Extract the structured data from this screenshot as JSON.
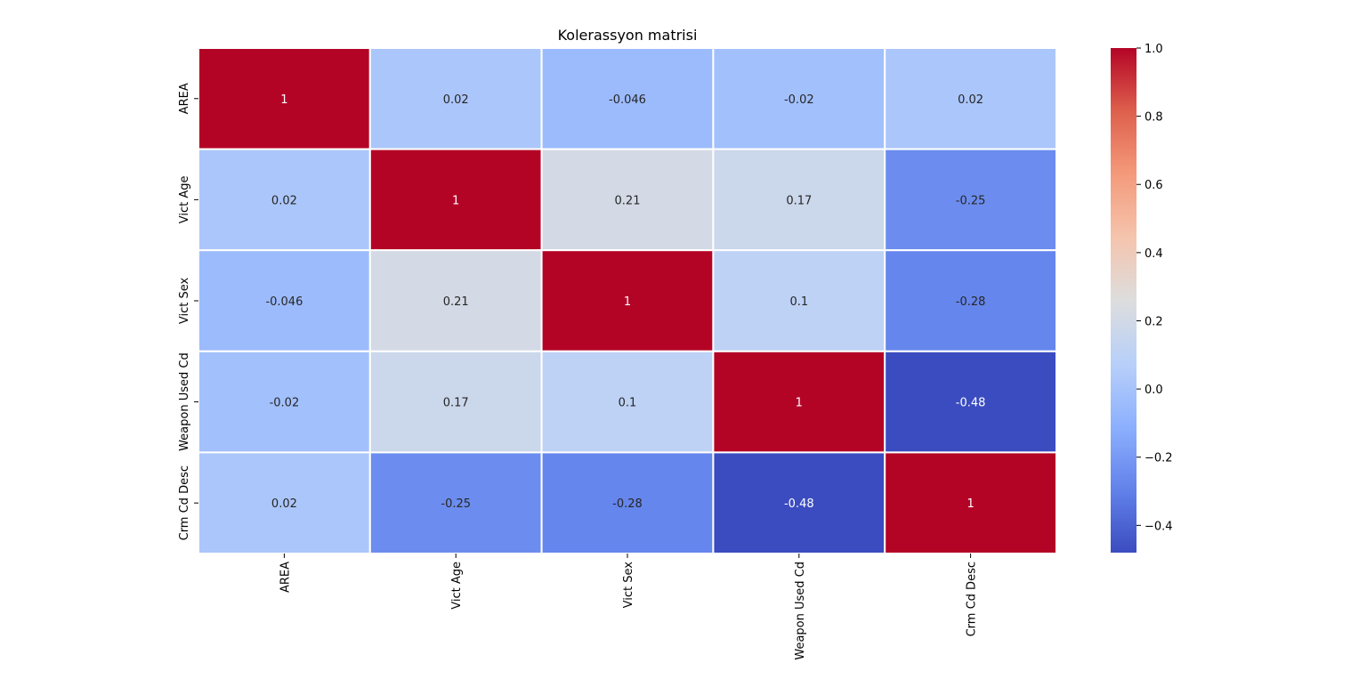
{
  "chart_data": {
    "type": "heatmap",
    "title": "Kolerassyon matrisi",
    "row_labels": [
      "AREA",
      "Vict Age",
      "Vict Sex",
      "Weapon Used Cd",
      "Crm Cd Desc"
    ],
    "col_labels": [
      "AREA",
      "Vict Age",
      "Vict Sex",
      "Weapon Used Cd",
      "Crm Cd Desc"
    ],
    "values": [
      [
        1,
        0.02,
        -0.046,
        -0.02,
        0.02
      ],
      [
        0.02,
        1,
        0.21,
        0.17,
        -0.25
      ],
      [
        -0.046,
        0.21,
        1,
        0.1,
        -0.28
      ],
      [
        -0.02,
        0.17,
        0.1,
        1,
        -0.48
      ],
      [
        0.02,
        -0.25,
        -0.28,
        -0.48,
        1
      ]
    ],
    "annotations": [
      [
        "1",
        "0.02",
        "-0.046",
        "-0.02",
        "0.02"
      ],
      [
        "0.02",
        "1",
        "0.21",
        "0.17",
        "-0.25"
      ],
      [
        "-0.046",
        "0.21",
        "1",
        "0.1",
        "-0.28"
      ],
      [
        "-0.02",
        "0.17",
        "0.1",
        "1",
        "-0.48"
      ],
      [
        "0.02",
        "-0.25",
        "-0.28",
        "-0.48",
        "1"
      ]
    ],
    "colormap": "coolwarm",
    "colorbar": {
      "range": [
        -0.48,
        1
      ],
      "ticks": [
        -0.4,
        -0.2,
        0.0,
        0.2,
        0.4,
        0.6,
        0.8,
        1.0
      ],
      "tick_labels": [
        "−0.4",
        "−0.2",
        "0.0",
        "0.2",
        "0.4",
        "0.6",
        "0.8",
        "1.0"
      ]
    },
    "xlabel": "",
    "ylabel": "",
    "grid": false
  }
}
